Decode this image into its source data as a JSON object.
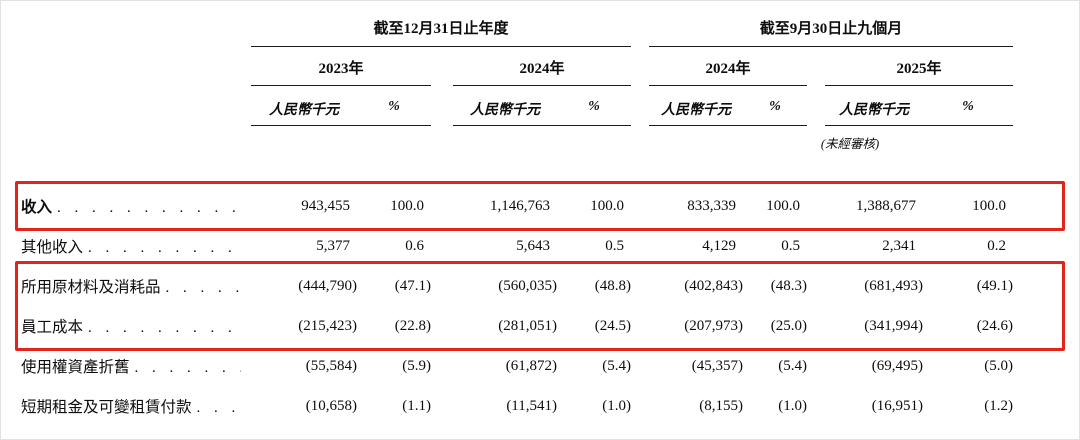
{
  "table": {
    "group_headers": [
      "截至12月31日止年度",
      "截至9月30日止九個月"
    ],
    "year_headers": [
      "2023年",
      "2024年",
      "2024年",
      "2025年"
    ],
    "unit_amount_label": "人民幣千元",
    "unit_percent_label": "%",
    "unaudited_note": "(未經審核)",
    "highlight_color": "#e3241b",
    "highlight_groups": [
      [
        0,
        0
      ],
      [
        2,
        3
      ]
    ],
    "rows": [
      {
        "label": "收入",
        "bold": true,
        "values": [
          "943,455",
          "100.0",
          "1,146,763",
          "100.0",
          "833,339",
          "100.0",
          "1,388,677",
          "100.0"
        ]
      },
      {
        "label": "其他收入",
        "bold": false,
        "values": [
          "5,377",
          "0.6",
          "5,643",
          "0.5",
          "4,129",
          "0.5",
          "2,341",
          "0.2"
        ]
      },
      {
        "label": "所用原材料及消耗品",
        "bold": false,
        "values": [
          "(444,790)",
          "(47.1)",
          "(560,035)",
          "(48.8)",
          "(402,843)",
          "(48.3)",
          "(681,493)",
          "(49.1)"
        ]
      },
      {
        "label": "員工成本",
        "bold": false,
        "values": [
          "(215,423)",
          "(22.8)",
          "(281,051)",
          "(24.5)",
          "(207,973)",
          "(25.0)",
          "(341,994)",
          "(24.6)"
        ]
      },
      {
        "label": "使用權資產折舊",
        "bold": false,
        "values": [
          "(55,584)",
          "(5.9)",
          "(61,872)",
          "(5.4)",
          "(45,357)",
          "(5.4)",
          "(69,495)",
          "(5.0)"
        ]
      },
      {
        "label": "短期租金及可變租賃付款",
        "bold": false,
        "values": [
          "(10,658)",
          "(1.1)",
          "(11,541)",
          "(1.0)",
          "(8,155)",
          "(1.0)",
          "(16,951)",
          "(1.2)"
        ]
      }
    ]
  }
}
